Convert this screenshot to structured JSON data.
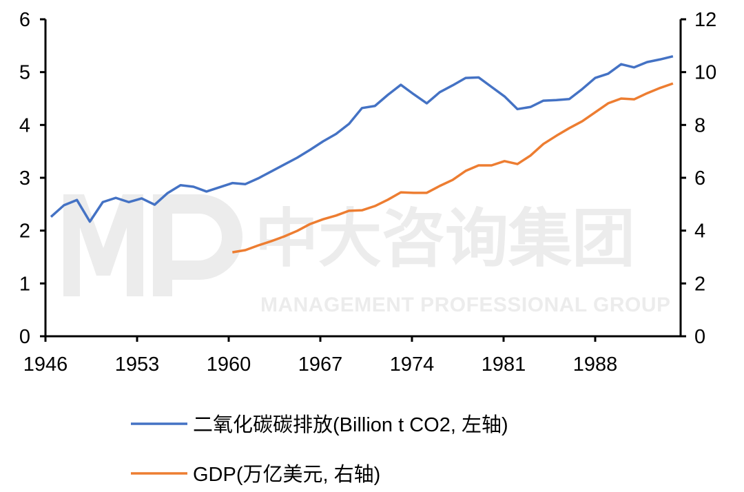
{
  "watermark": {
    "logo": "MP",
    "cn": "中大咨询集团",
    "en": "MANAGEMENT PROFESSIONAL GROUP"
  },
  "chart_data": {
    "type": "line",
    "title": "",
    "xlabel": "",
    "ylabel_left": "",
    "ylabel_right": "",
    "x_tick_labels": [
      "1946",
      "1953",
      "1960",
      "1967",
      "1974",
      "1981",
      "1988"
    ],
    "y_left_ticks": [
      "0",
      "1",
      "2",
      "3",
      "4",
      "5",
      "6"
    ],
    "y_right_ticks": [
      "0",
      "2",
      "4",
      "6",
      "8",
      "10",
      "12"
    ],
    "ylim_left": [
      0,
      6
    ],
    "ylim_right": [
      0,
      12
    ],
    "grid": false,
    "legend_position": "bottom",
    "x": [
      1946,
      1947,
      1948,
      1949,
      1950,
      1951,
      1952,
      1953,
      1954,
      1955,
      1956,
      1957,
      1958,
      1959,
      1960,
      1961,
      1962,
      1963,
      1964,
      1965,
      1966,
      1967,
      1968,
      1969,
      1970,
      1971,
      1972,
      1973,
      1974,
      1975,
      1976,
      1977,
      1978,
      1979,
      1980,
      1981,
      1982,
      1983,
      1984,
      1985,
      1986,
      1987,
      1988,
      1989,
      1990,
      1991,
      1992,
      1993,
      1994
    ],
    "series": [
      {
        "name": "二氧化碳碳排放(Billion t CO2, 左轴)",
        "axis": "left",
        "color": "#4472C4",
        "values": [
          2.26,
          2.48,
          2.58,
          2.17,
          2.54,
          2.62,
          2.54,
          2.61,
          2.49,
          2.71,
          2.86,
          2.83,
          2.74,
          2.82,
          2.9,
          2.88,
          2.99,
          3.12,
          3.25,
          3.38,
          3.53,
          3.69,
          3.83,
          4.02,
          4.32,
          4.36,
          4.57,
          4.76,
          4.58,
          4.41,
          4.62,
          4.75,
          4.89,
          4.9,
          4.72,
          4.54,
          4.3,
          4.34,
          4.46,
          4.47,
          4.49,
          4.68,
          4.89,
          4.97,
          5.15,
          5.09,
          5.19,
          5.24,
          5.3
        ]
      },
      {
        "name": "GDP(万亿美元, 右轴)",
        "axis": "right",
        "color": "#ED7D31",
        "values": [
          null,
          null,
          null,
          null,
          null,
          null,
          null,
          null,
          null,
          null,
          null,
          null,
          null,
          null,
          3.18,
          3.26,
          3.44,
          3.6,
          3.78,
          3.99,
          4.25,
          4.43,
          4.57,
          4.75,
          4.77,
          4.93,
          5.17,
          5.45,
          5.43,
          5.43,
          5.69,
          5.92,
          6.26,
          6.47,
          6.47,
          6.63,
          6.52,
          6.84,
          7.28,
          7.59,
          7.88,
          8.14,
          8.48,
          8.82,
          9.0,
          8.97,
          9.2,
          9.4,
          9.57
        ]
      }
    ]
  }
}
